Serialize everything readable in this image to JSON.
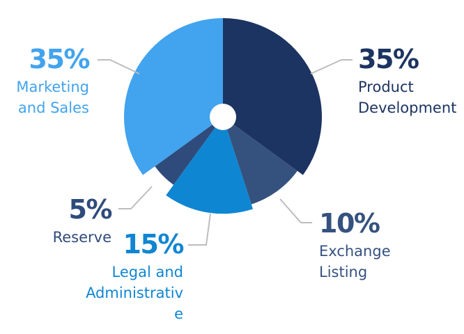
{
  "chart_data": {
    "type": "pie",
    "title": "",
    "slices": [
      {
        "label": "Product Development",
        "label_lines": [
          "Product",
          "Development"
        ],
        "value": 35,
        "display": "35%",
        "color": "#1c3461",
        "label_color": "#1c3461"
      },
      {
        "label": "Exchange Listing",
        "label_lines": [
          "Exchange",
          "Listing"
        ],
        "value": 10,
        "display": "10%",
        "color": "#35527f",
        "label_color": "#35527f"
      },
      {
        "label": "Legal and Administrative",
        "label_lines": [
          "Legal and",
          "Administrativ",
          "e"
        ],
        "value": 15,
        "display": "15%",
        "color": "#0f86d2",
        "label_color": "#0f86d2"
      },
      {
        "label": "Reserve",
        "label_lines": [
          "Reserve"
        ],
        "value": 5,
        "display": "5%",
        "color": "#2f4b7c",
        "label_color": "#2f4b7c"
      },
      {
        "label": "Marketing and Sales",
        "label_lines": [
          "Marketing",
          "and Sales"
        ],
        "value": 35,
        "display": "35%",
        "color": "#42a3ee",
        "label_color": "#42a3ee"
      }
    ]
  },
  "colors": {
    "leader_line": "#bdbdbd",
    "background": "#ffffff",
    "center_hole": "#ffffff"
  }
}
